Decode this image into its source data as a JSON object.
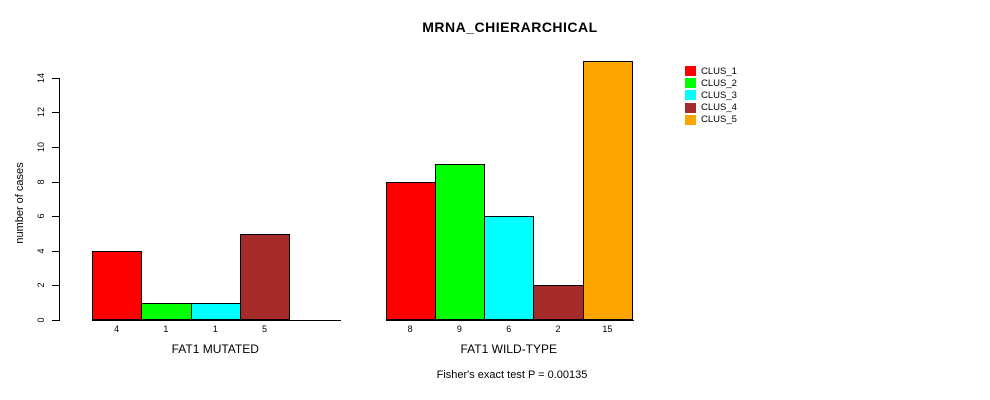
{
  "chart_data": {
    "type": "bar",
    "title": "MRNA_CHIERARCHICAL",
    "ylabel": "number of cases",
    "ylim": [
      0,
      15
    ],
    "yticks": [
      0,
      2,
      4,
      6,
      8,
      10,
      12,
      14
    ],
    "grid": false,
    "legend_position": "right",
    "series_labels": [
      "CLUS_1",
      "CLUS_2",
      "CLUS_3",
      "CLUS_4",
      "CLUS_5"
    ],
    "series_colors": [
      "#FF0000",
      "#00FF00",
      "#00FFFF",
      "#A52A2A",
      "#FFA500"
    ],
    "groups": [
      {
        "label": "FAT1 MUTATED",
        "values": [
          4,
          1,
          1,
          5,
          0
        ],
        "bar_labels": [
          "4",
          "1",
          "1",
          "5",
          ""
        ]
      },
      {
        "label": "FAT1 WILD-TYPE",
        "values": [
          8,
          9,
          6,
          2,
          15
        ],
        "bar_labels": [
          "8",
          "9",
          "6",
          "2",
          "15"
        ]
      }
    ],
    "annotation": "Fisher's exact test P = 0.00135",
    "axis_color": "#000000",
    "bar_border_color": "#000000",
    "background_color": "#FFFFFF"
  }
}
